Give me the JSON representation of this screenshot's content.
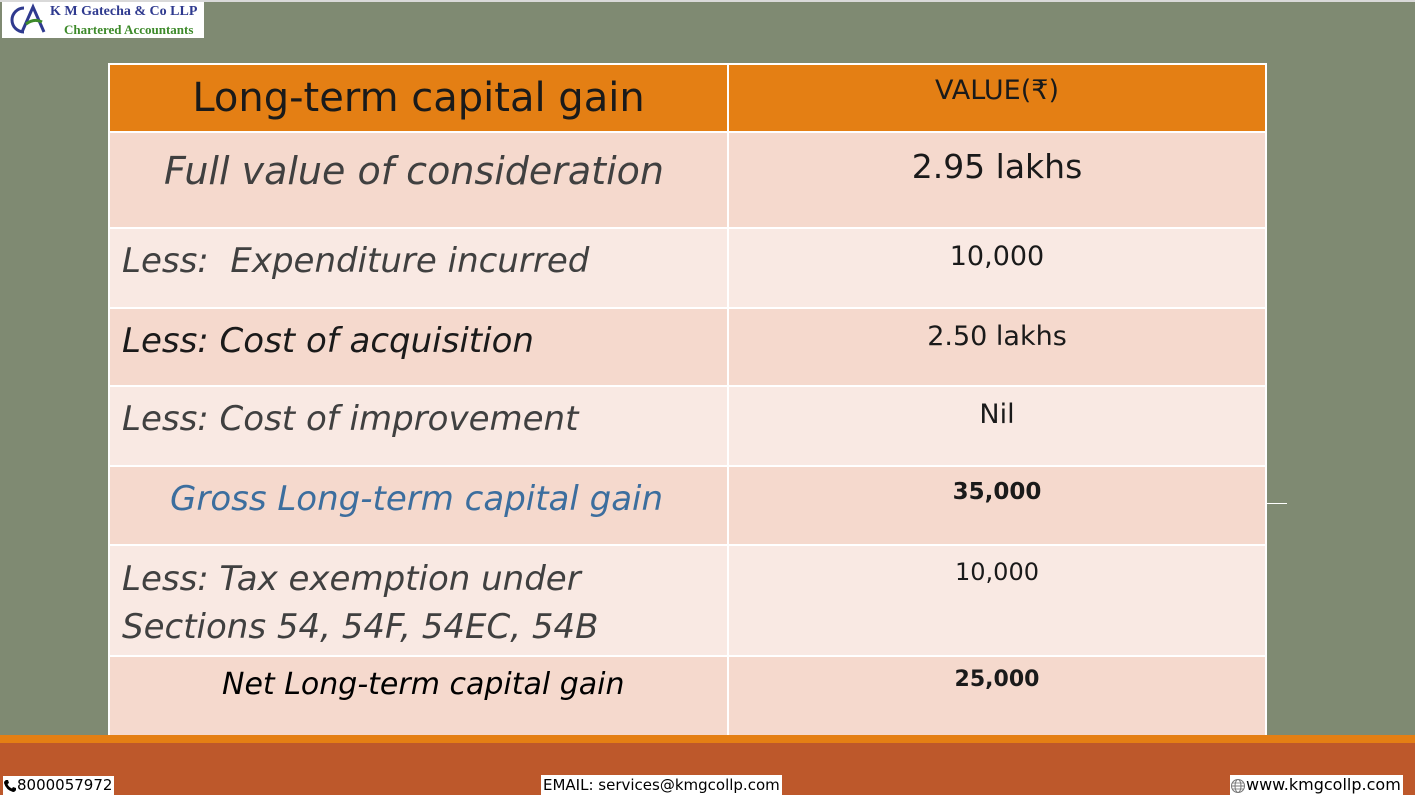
{
  "logo": {
    "mark": "CA",
    "name": "K M Gatecha & Co LLP",
    "subtitle": "Chartered Accountants"
  },
  "table": {
    "header": {
      "col1": "Long-term capital gain",
      "col2": "VALUE(₹)"
    },
    "rows": [
      {
        "label": "Full value of consideration",
        "value": "2.95 lakhs"
      },
      {
        "label": "Less:  Expenditure incurred",
        "value": "10,000"
      },
      {
        "label": "Less: Cost of acquisition",
        "value": "2.50 lakhs"
      },
      {
        "label": "Less: Cost of improvement",
        "value": "Nil"
      },
      {
        "label": "Gross Long-term capital gain",
        "value": "35,000"
      },
      {
        "label_line1": "Less: Tax exemption under",
        "label_line2": "Sections 54, 54F, 54EC, 54B",
        "value": "10,000"
      },
      {
        "label": "Net Long-term capital gain",
        "value": "25,000"
      }
    ]
  },
  "footer": {
    "phone": "8000057972",
    "email": "EMAIL: services@kmgcollp.com",
    "website": "www.kmgcollp.com",
    "phone_icon": "phone-icon",
    "globe_icon": "globe-icon"
  },
  "colors": {
    "background": "#7f8a72",
    "header": "#e47f14",
    "row_dark": "#f5d9cd",
    "row_light": "#f9e9e3",
    "footer": "#bd582b",
    "highlight_text": "#3c6e9e"
  }
}
